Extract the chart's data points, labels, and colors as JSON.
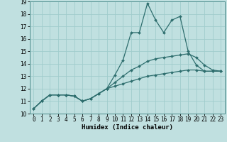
{
  "title": "",
  "xlabel": "Humidex (Indice chaleur)",
  "ylabel": "",
  "background_color": "#c0e0e0",
  "grid_color": "#a0cccc",
  "line_color": "#2e6e6e",
  "xlim": [
    -0.5,
    23.5
  ],
  "ylim": [
    10,
    19
  ],
  "xticks": [
    0,
    1,
    2,
    3,
    4,
    5,
    6,
    7,
    8,
    9,
    10,
    11,
    12,
    13,
    14,
    15,
    16,
    17,
    18,
    19,
    20,
    21,
    22,
    23
  ],
  "yticks": [
    10,
    11,
    12,
    13,
    14,
    15,
    16,
    17,
    18,
    19
  ],
  "hours": [
    0,
    1,
    2,
    3,
    4,
    5,
    6,
    7,
    8,
    9,
    10,
    11,
    12,
    13,
    14,
    15,
    16,
    17,
    18,
    19,
    20,
    21,
    22,
    23
  ],
  "line1": [
    10.4,
    11.0,
    11.5,
    11.5,
    11.5,
    11.4,
    11.0,
    11.2,
    11.6,
    12.0,
    13.1,
    14.3,
    16.5,
    16.5,
    18.85,
    17.5,
    16.5,
    17.5,
    17.8,
    15.0,
    13.9,
    13.4,
    13.4,
    13.4
  ],
  "line2": [
    10.4,
    11.0,
    11.5,
    11.5,
    11.5,
    11.4,
    11.0,
    11.2,
    11.6,
    12.0,
    12.5,
    13.0,
    13.5,
    13.8,
    14.2,
    14.4,
    14.5,
    14.6,
    14.7,
    14.8,
    14.5,
    13.9,
    13.5,
    13.4
  ],
  "line3": [
    10.4,
    11.0,
    11.5,
    11.5,
    11.5,
    11.4,
    11.0,
    11.2,
    11.6,
    12.0,
    12.2,
    12.4,
    12.6,
    12.8,
    13.0,
    13.1,
    13.2,
    13.3,
    13.4,
    13.5,
    13.5,
    13.4,
    13.4,
    13.4
  ],
  "marker_size": 2.0,
  "line_width": 0.9,
  "tick_fontsize": 5.5,
  "xlabel_fontsize": 6.5
}
